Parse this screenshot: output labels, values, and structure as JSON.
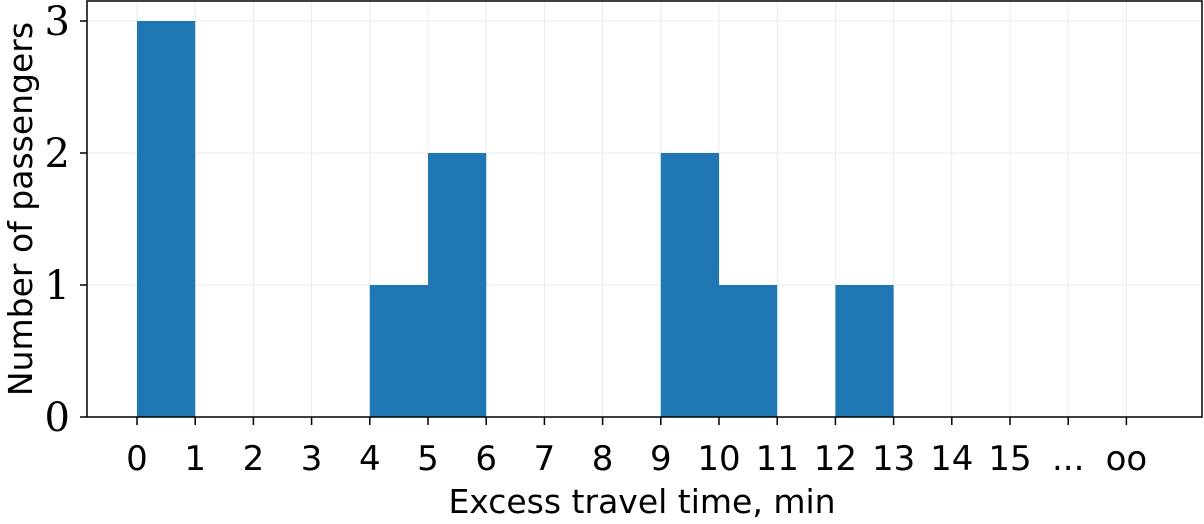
{
  "chart_data": {
    "type": "bar",
    "title": "",
    "xlabel": "Excess travel time, min",
    "ylabel": "Number of passengers",
    "x_tick_labels": [
      "0",
      "1",
      "2",
      "3",
      "4",
      "5",
      "6",
      "7",
      "8",
      "9",
      "10",
      "11",
      "12",
      "13",
      "14",
      "15",
      "...",
      "oo"
    ],
    "y_ticks": [
      0,
      1,
      2,
      3
    ],
    "ylim": [
      0,
      3
    ],
    "bins": [
      {
        "start": 0,
        "end": 1,
        "value": 3
      },
      {
        "start": 1,
        "end": 2,
        "value": 0
      },
      {
        "start": 2,
        "end": 3,
        "value": 0
      },
      {
        "start": 3,
        "end": 4,
        "value": 0
      },
      {
        "start": 4,
        "end": 5,
        "value": 1
      },
      {
        "start": 5,
        "end": 6,
        "value": 2
      },
      {
        "start": 6,
        "end": 7,
        "value": 0
      },
      {
        "start": 7,
        "end": 8,
        "value": 0
      },
      {
        "start": 8,
        "end": 9,
        "value": 0
      },
      {
        "start": 9,
        "end": 10,
        "value": 2
      },
      {
        "start": 10,
        "end": 11,
        "value": 1
      },
      {
        "start": 11,
        "end": 12,
        "value": 0
      },
      {
        "start": 12,
        "end": 13,
        "value": 1
      },
      {
        "start": 13,
        "end": 14,
        "value": 0
      },
      {
        "start": 14,
        "end": 15,
        "value": 0
      },
      {
        "start": 15,
        "end": 16,
        "value": 0
      },
      {
        "start": 16,
        "end": 17,
        "value": 0
      }
    ],
    "grid": true,
    "bar_color": "#1f77b4"
  }
}
